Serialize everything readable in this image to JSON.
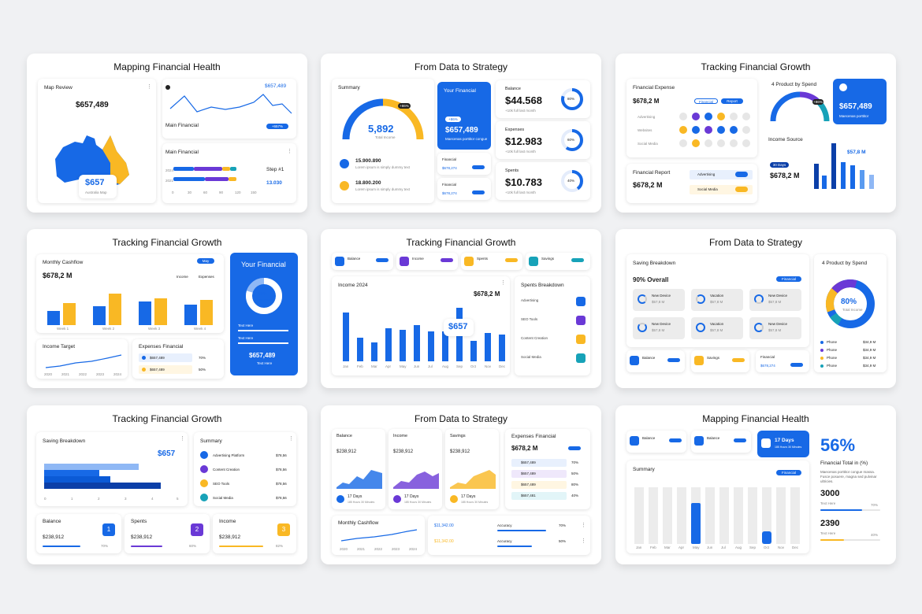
{
  "colors": {
    "blue": "#1769e6",
    "yellow": "#f9b824",
    "purple": "#6a39d6",
    "navy": "#0b3fa8",
    "light": "#8fb8f5",
    "teal": "#17a2b8"
  },
  "s1": {
    "title": "Mapping Financial Health",
    "map_label": "Map Review",
    "map_value": "$657,489",
    "map_big": "$657",
    "map_sub": "Australia Map",
    "line_value": "$657,489",
    "line_label": "Main Financial",
    "line_pill": "+657%",
    "bars_title": "Main Financial",
    "step": "Step #1",
    "step_value": "13.030",
    "years": [
      "2024",
      "2021"
    ],
    "ticks": [
      "0",
      "30",
      "60",
      "90",
      "120",
      "150"
    ]
  },
  "s2": {
    "title": "From Data to Strategy",
    "summary": "Summary",
    "gauge_val": "5,892",
    "gauge_sub": "Total Income",
    "gauge_pill": "+86%",
    "items": [
      {
        "v": "15.900.890",
        "t": "Lorem ipsum is simply dummy text"
      },
      {
        "v": "18.800.200",
        "t": "Lorem ipsum is simply dummy text"
      }
    ],
    "your": "Your Financial",
    "your_pill": "+86%",
    "your_val": "$657,489",
    "your_txt": "Maecenas porttitor congue",
    "fin": [
      "Financial",
      "Financial"
    ],
    "fin_val": "$678,274",
    "stats": [
      {
        "label": "Balance",
        "value": "$44.568",
        "pct": "80%",
        "sub": "+10k full last month"
      },
      {
        "label": "Expenses",
        "value": "$12.983",
        "pct": "60%",
        "sub": "+10k full last month"
      },
      {
        "label": "Spents",
        "value": "$10.783",
        "pct": "40%",
        "sub": "+10k full last month"
      }
    ]
  },
  "s3": {
    "title": "Tracking Financial Growth",
    "expense": "Financial Expense",
    "expense_val": "$678,2 M",
    "tabs": [
      "Financial",
      "Report"
    ],
    "legend": [
      "Advertising",
      "Websites",
      "Social Media"
    ],
    "product": "4 Product by Spend",
    "gauge_pill": "+86%",
    "blue_val": "$657,489",
    "blue_txt": "Maecenas porttitor",
    "report": "Financial Report",
    "report_val": "$678,2 M",
    "report_items": [
      "Advertising",
      "Social Media"
    ],
    "income": "Income Source",
    "income_pill": "30 Days",
    "income_val": "$678,2 M",
    "income_big": "$57,8 M"
  },
  "s4": {
    "title": "Tracking Financial Growth",
    "cash": "Monthly Cashflow",
    "cash_val": "$678,2 M",
    "cash_tab": "May",
    "legend": [
      "Income",
      "Expenses"
    ],
    "weeks": [
      "Week 1",
      "Week 2",
      "Week 3",
      "Week 4"
    ],
    "bar_vals": [
      "1.2",
      "4.4",
      "5.5",
      "6.8",
      "3.1",
      "5.9",
      "3.4",
      "2.6"
    ],
    "income_target": "Income Target",
    "target_years": [
      "2020",
      "2021",
      "2022",
      "2023",
      "2024"
    ],
    "exp": "Expenses Financial",
    "exp_rows": [
      {
        "v": "$657,489",
        "p": "70%"
      },
      {
        "v": "$657,489",
        "p": "50%"
      }
    ],
    "your": "Your Financial",
    "donut": "80%",
    "donut_sub": "Total Income",
    "text_here": "Text Here",
    "your_val": "$657,489"
  },
  "s5": {
    "title": "Tracking Financial Growth",
    "kpis": [
      "Balance",
      "Income",
      "Spents",
      "Savings"
    ],
    "income": "Income 2024",
    "income_val": "$678,2 M",
    "highlight": "$657",
    "months": [
      "Jan",
      "Feb",
      "Mar",
      "Apr",
      "May",
      "Jun",
      "Jul",
      "Aug",
      "Sep",
      "Oct",
      "Nov",
      "Dec"
    ],
    "breakdown": "Spents Breakdown",
    "items": [
      "Advertising",
      "SEO Tools",
      "Content Creation",
      "Social Media"
    ]
  },
  "s6": {
    "title": "From Data to Strategy",
    "saving": "Saving Breakdown",
    "overall": "90% Overall",
    "tab": "Financial",
    "cells": [
      {
        "t": "New Device",
        "v": "$57,8 M"
      },
      {
        "t": "Vacation",
        "v": "$57,8 M"
      },
      {
        "t": "New Device",
        "v": "$57,8 M"
      },
      {
        "t": "New Device",
        "v": "$57,8 M"
      },
      {
        "t": "Vacation",
        "v": "$57,8 M"
      },
      {
        "t": "New Device",
        "v": "$57,8 M"
      }
    ],
    "product": "4 Product by Spend",
    "donut": "80%",
    "donut_sub": "Total Income",
    "list": [
      {
        "t": "Phone",
        "v": "$34,9 M"
      },
      {
        "t": "Phone",
        "v": "$34,9 M"
      },
      {
        "t": "Phone",
        "v": "$34,9 M"
      },
      {
        "t": "Phone",
        "v": "$34,9 M"
      }
    ],
    "bottom": [
      "Balance",
      "Savings",
      "Financial"
    ],
    "fin_val": "$678,274"
  },
  "s7": {
    "title": "Tracking Financial Growth",
    "saving": "Saving Breakdown",
    "saving_val": "$657",
    "ticks": [
      "0",
      "1",
      "2",
      "3",
      "4",
      "5"
    ],
    "summary": "Summary",
    "rows": [
      {
        "t": "Advertising Platform",
        "v": "$78,56"
      },
      {
        "t": "Content Creation",
        "v": "$78,56"
      },
      {
        "t": "SEO Tools",
        "v": "$78,56"
      },
      {
        "t": "Social Media",
        "v": "$78,56"
      }
    ],
    "bottom": [
      {
        "t": "Balance",
        "v": "$238,912",
        "n": "1",
        "p": "70%"
      },
      {
        "t": "Spents",
        "v": "$238,912",
        "n": "2",
        "p": "60%"
      },
      {
        "t": "Income",
        "v": "$238,912",
        "n": "3",
        "p": "82%"
      }
    ]
  },
  "s8": {
    "title": "From Data to Strategy",
    "cards": [
      {
        "t": "Balance",
        "v": "$238,912",
        "d": "17 Days"
      },
      {
        "t": "Income",
        "v": "$238,912",
        "d": "17 Days"
      },
      {
        "t": "Savings",
        "v": "$238,912",
        "d": "17 Days"
      }
    ],
    "days_sub": "185 Hours 30 Minutes",
    "exp": "Expenses Financial",
    "exp_val": "$678,2 M",
    "exp_rows": [
      "$657,489",
      "$657,489",
      "$657,489",
      "$657,481"
    ],
    "exp_pcts": [
      "70%",
      "50%",
      "80%",
      "40%"
    ],
    "cash": "Monthly Cashflow",
    "cash_years": [
      "2020",
      "2021",
      "2022",
      "2023",
      "2024"
    ],
    "mini": [
      "$11,342.00",
      "$11,342.00"
    ],
    "acc": [
      {
        "t": "Accuracy",
        "p": "70%"
      },
      {
        "t": "Accuracy",
        "p": "50%"
      }
    ]
  },
  "s9": {
    "title": "Mapping Financial Health",
    "kpis": [
      "Balance",
      "Balance"
    ],
    "days": "17 Days",
    "days_sub": "185 Hours 30 Minutes",
    "summary": "Summary",
    "tab": "Financial",
    "big_pct": "56%",
    "big_label": "Financial Total in (%)",
    "big_txt": "Maecenas porttitor congue massa. Fusce posuere, magna sed pulvinar ultricies.",
    "stats": [
      {
        "v": "3000",
        "t": "Text Here",
        "p": "70%"
      },
      {
        "v": "2390",
        "t": "Text Here",
        "p": "40%"
      }
    ],
    "months": [
      "Jan",
      "Feb",
      "Mar",
      "Apr",
      "May",
      "Jun",
      "Jul",
      "Aug",
      "Sep",
      "Oct",
      "Nov",
      "Dec"
    ]
  }
}
